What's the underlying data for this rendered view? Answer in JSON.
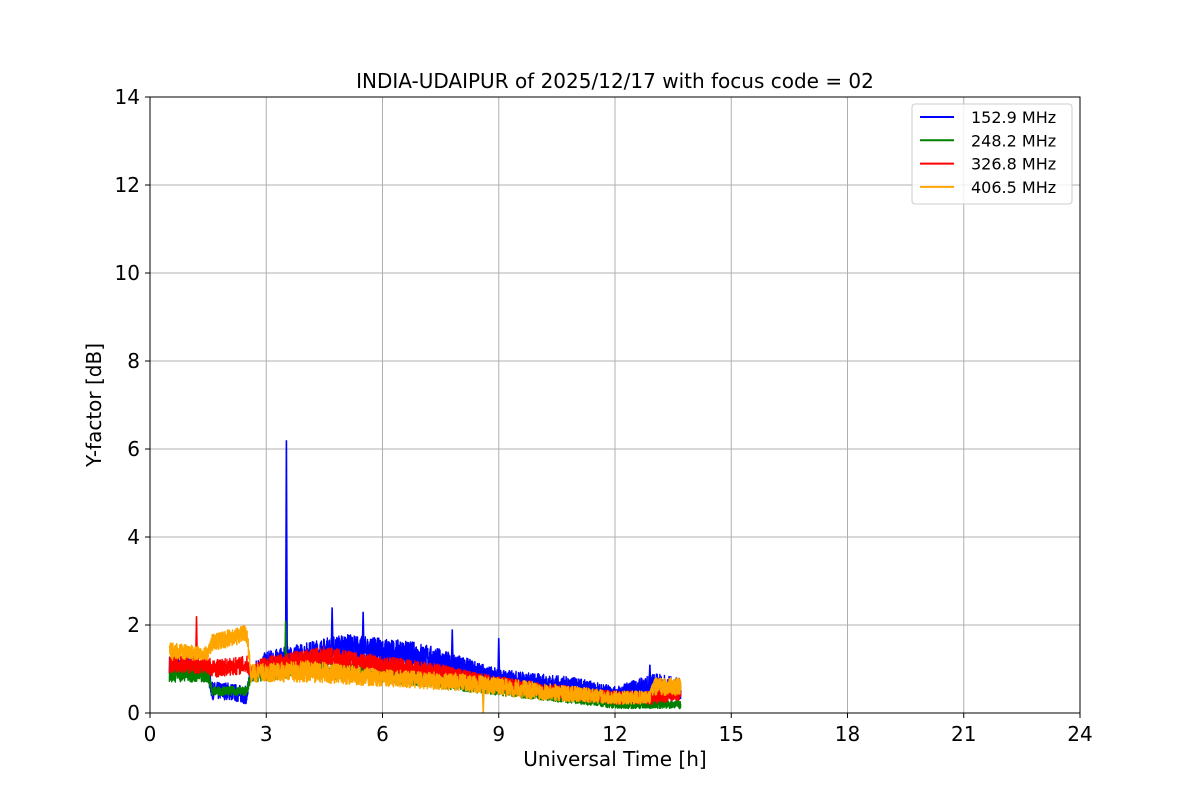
{
  "chart_data": {
    "type": "line",
    "title": "INDIA-UDAIPUR of 2025/12/17 with focus code = 02",
    "xlabel": "Universal Time [h]",
    "ylabel": "Y-factor [dB]",
    "xlim": [
      0,
      24
    ],
    "ylim": [
      0,
      14
    ],
    "xticks": [
      0,
      3,
      6,
      9,
      12,
      15,
      18,
      21,
      24
    ],
    "yticks": [
      0,
      2,
      4,
      6,
      8,
      10,
      12,
      14
    ],
    "grid": true,
    "legend_position": "top-right",
    "series": [
      {
        "name": "152.9 MHz",
        "color": "#0000ff",
        "upper": [
          [
            0.5,
            1.3
          ],
          [
            1.0,
            1.3
          ],
          [
            1.5,
            1.1
          ],
          [
            1.6,
            0.7
          ],
          [
            2.0,
            0.7
          ],
          [
            2.5,
            0.6
          ],
          [
            2.6,
            1.1
          ],
          [
            3.0,
            1.4
          ],
          [
            3.5,
            1.5
          ],
          [
            4.0,
            1.6
          ],
          [
            5.0,
            1.8
          ],
          [
            6.0,
            1.7
          ],
          [
            7.0,
            1.6
          ],
          [
            8.0,
            1.3
          ],
          [
            9.0,
            1.0
          ],
          [
            10.0,
            0.9
          ],
          [
            11.0,
            0.8
          ],
          [
            12.0,
            0.6
          ],
          [
            13.0,
            0.9
          ],
          [
            13.7,
            0.8
          ]
        ],
        "lower": [
          [
            0.5,
            0.9
          ],
          [
            1.0,
            0.9
          ],
          [
            1.5,
            0.7
          ],
          [
            1.6,
            0.3
          ],
          [
            2.0,
            0.3
          ],
          [
            2.5,
            0.2
          ],
          [
            2.6,
            0.7
          ],
          [
            3.0,
            0.9
          ],
          [
            3.5,
            1.0
          ],
          [
            4.0,
            1.1
          ],
          [
            5.0,
            1.2
          ],
          [
            6.0,
            1.1
          ],
          [
            7.0,
            1.0
          ],
          [
            8.0,
            0.8
          ],
          [
            9.0,
            0.6
          ],
          [
            10.0,
            0.5
          ],
          [
            11.0,
            0.4
          ],
          [
            12.0,
            0.3
          ],
          [
            13.0,
            0.3
          ],
          [
            13.7,
            0.3
          ]
        ],
        "peaks": [
          [
            3.52,
            6.2
          ],
          [
            4.7,
            2.4
          ],
          [
            5.5,
            2.3
          ],
          [
            7.8,
            1.9
          ],
          [
            9.0,
            1.7
          ],
          [
            12.9,
            1.1
          ]
        ]
      },
      {
        "name": "248.2 MHz",
        "color": "#008000",
        "upper": [
          [
            0.5,
            1.1
          ],
          [
            1.5,
            1.1
          ],
          [
            1.6,
            0.6
          ],
          [
            2.5,
            0.6
          ],
          [
            2.6,
            1.0
          ],
          [
            4.0,
            1.2
          ],
          [
            6.0,
            1.1
          ],
          [
            8.0,
            0.8
          ],
          [
            10.0,
            0.5
          ],
          [
            12.0,
            0.3
          ],
          [
            13.0,
            0.3
          ],
          [
            13.7,
            0.3
          ]
        ],
        "lower": [
          [
            0.5,
            0.7
          ],
          [
            1.5,
            0.7
          ],
          [
            1.6,
            0.4
          ],
          [
            2.5,
            0.4
          ],
          [
            2.6,
            0.7
          ],
          [
            4.0,
            0.8
          ],
          [
            6.0,
            0.7
          ],
          [
            8.0,
            0.5
          ],
          [
            10.0,
            0.3
          ],
          [
            12.0,
            0.1
          ],
          [
            13.0,
            0.1
          ],
          [
            13.7,
            0.1
          ]
        ],
        "peaks": [
          [
            3.5,
            2.1
          ]
        ]
      },
      {
        "name": "326.8 MHz",
        "color": "#ff0000",
        "upper": [
          [
            0.5,
            1.3
          ],
          [
            1.5,
            1.3
          ],
          [
            1.6,
            1.2
          ],
          [
            2.5,
            1.3
          ],
          [
            2.6,
            1.1
          ],
          [
            3.0,
            1.3
          ],
          [
            4.5,
            1.5
          ],
          [
            6.0,
            1.3
          ],
          [
            7.5,
            1.1
          ],
          [
            8.5,
            0.9
          ],
          [
            10.0,
            0.7
          ],
          [
            12.0,
            0.5
          ],
          [
            13.0,
            0.5
          ],
          [
            13.7,
            0.6
          ]
        ],
        "lower": [
          [
            0.5,
            0.9
          ],
          [
            1.5,
            0.9
          ],
          [
            1.6,
            0.8
          ],
          [
            2.5,
            0.9
          ],
          [
            2.6,
            0.8
          ],
          [
            3.0,
            0.9
          ],
          [
            4.5,
            1.1
          ],
          [
            6.0,
            0.9
          ],
          [
            7.5,
            0.8
          ],
          [
            8.5,
            0.6
          ],
          [
            10.0,
            0.4
          ],
          [
            12.0,
            0.2
          ],
          [
            13.0,
            0.2
          ],
          [
            13.7,
            0.3
          ]
        ],
        "peaks": [
          [
            1.2,
            2.2
          ]
        ]
      },
      {
        "name": "406.5 MHz",
        "color": "#ffa500",
        "upper": [
          [
            0.5,
            1.6
          ],
          [
            1.5,
            1.5
          ],
          [
            1.6,
            1.8
          ],
          [
            2.5,
            2.0
          ],
          [
            2.6,
            1.1
          ],
          [
            4.0,
            1.2
          ],
          [
            6.0,
            1.0
          ],
          [
            8.0,
            0.9
          ],
          [
            10.0,
            0.7
          ],
          [
            12.0,
            0.5
          ],
          [
            12.9,
            0.5
          ],
          [
            13.0,
            0.8
          ],
          [
            13.7,
            0.8
          ]
        ],
        "lower": [
          [
            0.5,
            1.2
          ],
          [
            1.5,
            1.2
          ],
          [
            1.6,
            1.4
          ],
          [
            2.5,
            1.6
          ],
          [
            2.6,
            0.7
          ],
          [
            4.0,
            0.7
          ],
          [
            6.0,
            0.6
          ],
          [
            8.0,
            0.5
          ],
          [
            10.0,
            0.3
          ],
          [
            12.0,
            0.2
          ],
          [
            12.9,
            0.2
          ],
          [
            13.0,
            0.4
          ],
          [
            13.7,
            0.4
          ]
        ],
        "peaks": [
          [
            8.6,
            0.0
          ]
        ]
      }
    ]
  }
}
